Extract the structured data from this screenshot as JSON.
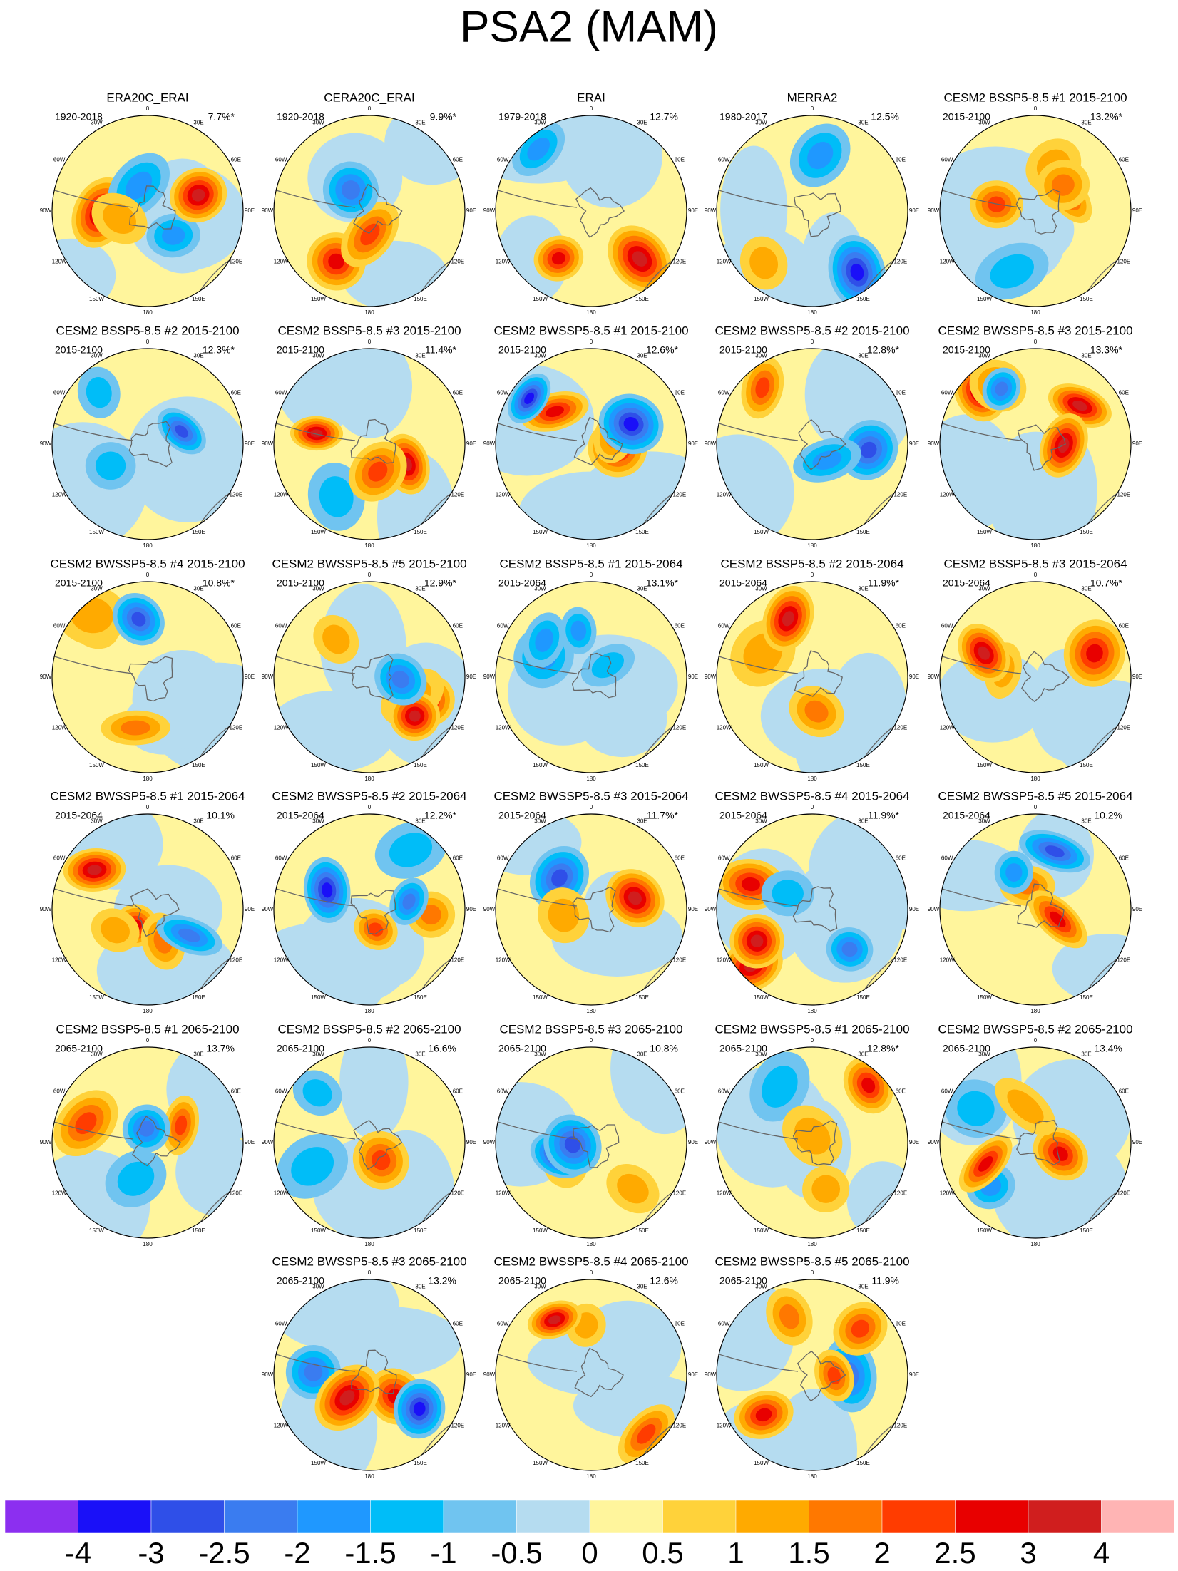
{
  "title": "PSA2 (MAM)",
  "map_labels": [
    "0",
    "30E",
    "60E",
    "90E",
    "120E",
    "150E",
    "180",
    "150W",
    "120W",
    "90W",
    "60W",
    "30W"
  ],
  "panels": [
    {
      "title": "ERA20C_ERAI",
      "period": "1920-2018",
      "variance": "7.7%*"
    },
    {
      "title": "CERA20C_ERAI",
      "period": "1920-2018",
      "variance": "9.9%*"
    },
    {
      "title": "ERAI",
      "period": "1979-2018",
      "variance": "12.7%"
    },
    {
      "title": "MERRA2",
      "period": "1980-2017",
      "variance": "12.5%"
    },
    {
      "title": "CESM2 BSSP5-8.5 #1 2015-2100",
      "period": "2015-2100",
      "variance": "13.2%*"
    },
    {
      "title": "CESM2 BSSP5-8.5 #2 2015-2100",
      "period": "2015-2100",
      "variance": "12.3%*"
    },
    {
      "title": "CESM2 BSSP5-8.5 #3 2015-2100",
      "period": "2015-2100",
      "variance": "11.4%*"
    },
    {
      "title": "CESM2 BWSSP5-8.5 #1 2015-2100",
      "period": "2015-2100",
      "variance": "12.6%*"
    },
    {
      "title": "CESM2 BWSSP5-8.5 #2 2015-2100",
      "period": "2015-2100",
      "variance": "12.8%*"
    },
    {
      "title": "CESM2 BWSSP5-8.5 #3 2015-2100",
      "period": "2015-2100",
      "variance": "13.3%*"
    },
    {
      "title": "CESM2 BWSSP5-8.5 #4 2015-2100",
      "period": "2015-2100",
      "variance": "10.8%*"
    },
    {
      "title": "CESM2 BWSSP5-8.5 #5 2015-2100",
      "period": "2015-2100",
      "variance": "12.9%*"
    },
    {
      "title": "CESM2 BSSP5-8.5 #1 2015-2064",
      "period": "2015-2064",
      "variance": "13.1%*"
    },
    {
      "title": "CESM2 BSSP5-8.5 #2 2015-2064",
      "period": "2015-2064",
      "variance": "11.9%*"
    },
    {
      "title": "CESM2 BSSP5-8.5 #3 2015-2064",
      "period": "2015-2064",
      "variance": "10.7%*"
    },
    {
      "title": "CESM2 BWSSP5-8.5 #1 2015-2064",
      "period": "2015-2064",
      "variance": "10.1%"
    },
    {
      "title": "CESM2 BWSSP5-8.5 #2 2015-2064",
      "period": "2015-2064",
      "variance": "12.2%*"
    },
    {
      "title": "CESM2 BWSSP5-8.5 #3 2015-2064",
      "period": "2015-2064",
      "variance": "11.7%*"
    },
    {
      "title": "CESM2 BWSSP5-8.5 #4 2015-2064",
      "period": "2015-2064",
      "variance": "11.9%*"
    },
    {
      "title": "CESM2 BWSSP5-8.5 #5 2015-2064",
      "period": "2015-2064",
      "variance": "10.2%"
    },
    {
      "title": "CESM2 BSSP5-8.5 #1 2065-2100",
      "period": "2065-2100",
      "variance": "13.7%"
    },
    {
      "title": "CESM2 BSSP5-8.5 #2 2065-2100",
      "period": "2065-2100",
      "variance": "16.6%"
    },
    {
      "title": "CESM2 BSSP5-8.5 #3 2065-2100",
      "period": "2065-2100",
      "variance": "10.8%"
    },
    {
      "title": "CESM2 BWSSP5-8.5 #1 2065-2100",
      "period": "2065-2100",
      "variance": "12.8%*"
    },
    {
      "title": "CESM2 BWSSP5-8.5 #2 2065-2100",
      "period": "2065-2100",
      "variance": "13.4%"
    },
    {
      "title": "CESM2 BWSSP5-8.5 #3 2065-2100",
      "period": "2065-2100",
      "variance": "13.2%"
    },
    {
      "title": "CESM2 BWSSP5-8.5 #4 2065-2100",
      "period": "2065-2100",
      "variance": "12.6%"
    },
    {
      "title": "CESM2 BWSSP5-8.5 #5 2065-2100",
      "period": "2065-2100",
      "variance": "11.9%"
    }
  ],
  "colorbar": {
    "colors": [
      "#8c2ff0",
      "#1a10f8",
      "#2f4fe8",
      "#3a7cf0",
      "#1f98ff",
      "#00bdf8",
      "#70c4f0",
      "#b5dcf0",
      "#fff59c",
      "#ffd23a",
      "#ffaa00",
      "#ff7800",
      "#ff3c00",
      "#e80000",
      "#d01e1e",
      "#ffb4b4"
    ],
    "labels": [
      -4,
      -3,
      -2.5,
      -2,
      -1.5,
      -1,
      -0.5,
      0,
      0.5,
      1,
      1.5,
      2,
      2.5,
      3,
      4
    ]
  }
}
